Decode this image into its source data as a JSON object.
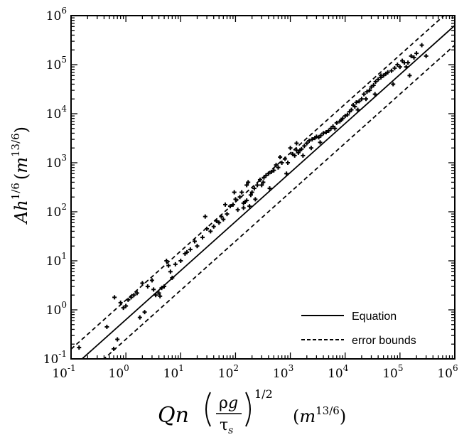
{
  "chart_data": {
    "type": "scatter",
    "scale": "log-log",
    "xlim": [
      0.1,
      1000000
    ],
    "ylim": [
      0.1,
      1000000
    ],
    "ticks": [
      {
        "value": 0.1,
        "base": "10",
        "exp": "-1"
      },
      {
        "value": 1,
        "base": "10",
        "exp": "0"
      },
      {
        "value": 10,
        "base": "10",
        "exp": "1"
      },
      {
        "value": 100,
        "base": "10",
        "exp": "2"
      },
      {
        "value": 1000,
        "base": "10",
        "exp": "3"
      },
      {
        "value": 10000,
        "base": "10",
        "exp": "4"
      },
      {
        "value": 100000,
        "base": "10",
        "exp": "5"
      },
      {
        "value": 1000000,
        "base": "10",
        "exp": "6"
      }
    ],
    "xlabel": {
      "q": "Q",
      "n": "n",
      "rho": "ρ",
      "g": "g",
      "tau": "τ",
      "tau_sub": "s",
      "power": "1/2",
      "unit_open": "(",
      "unit_m": "m",
      "unit_exp": "13/6",
      "unit_close": ")"
    },
    "ylabel": {
      "main": "Ah",
      "power": "1/6",
      "unit_open": "(",
      "unit_m": "m",
      "unit_exp": "13/6",
      "unit_close": ")"
    },
    "legend": {
      "position": "bottom-right",
      "entries": [
        {
          "label": "Equation",
          "style": "solid"
        },
        {
          "label": "error bounds",
          "style": "dashed"
        }
      ]
    },
    "lines": {
      "equation": {
        "x": [
          0.1,
          1000000
        ],
        "y": [
          0.0631,
          631000
        ]
      },
      "upper_bound": {
        "x": [
          0.1,
          1000000
        ],
        "y": [
          0.158,
          1580000
        ]
      },
      "lower_bound": {
        "x": [
          0.1,
          1000000
        ],
        "y": [
          0.0251,
          251000
        ]
      }
    },
    "points": {
      "x": [
        0.14,
        0.45,
        0.6,
        0.62,
        0.8,
        1.0,
        1.1,
        1.25,
        1.4,
        1.6,
        2.0,
        2.5,
        3.0,
        3.5,
        3.2,
        4.0,
        4.5,
        5.0,
        5.5,
        4.2,
        6.5,
        8.0,
        10,
        13,
        15,
        20,
        25,
        30,
        35,
        40,
        45,
        50,
        55,
        60,
        70,
        80,
        90,
        100,
        110,
        120,
        130,
        140,
        150,
        160,
        170,
        180,
        200,
        220,
        250,
        280,
        300,
        330,
        360,
        400,
        450,
        500,
        550,
        600,
        700,
        800,
        900,
        1000,
        1100,
        1200,
        1300,
        1400,
        1500,
        1600,
        1800,
        2000,
        2200,
        2500,
        2800,
        3000,
        3300,
        3600,
        4000,
        4500,
        5000,
        5500,
        6000,
        7000,
        8000,
        9000,
        10000,
        11000,
        12000,
        13000,
        14000,
        15000,
        16000,
        18000,
        20000,
        22000,
        25000,
        28000,
        30000,
        33000,
        36000,
        40000,
        45000,
        50000,
        55000,
        60000,
        70000,
        80000,
        90000,
        100000,
        110000,
        120000,
        140000,
        160000,
        180000,
        200000,
        250000,
        300000,
        1.8,
        2.2,
        0.7,
        0.9,
        6.0,
        7.0,
        12,
        18,
        28,
        65,
        95,
        140,
        160,
        190,
        230,
        320,
        420,
        650,
        850,
        1300,
        1700,
        2400,
        3500,
        6500,
        8500,
        17000,
        24000,
        35000,
        45000,
        75000,
        130000,
        150000
      ],
      "y": [
        0.17,
        0.45,
        0.16,
        1.8,
        1.4,
        1.2,
        1.6,
        1.8,
        2.0,
        2.2,
        3.5,
        3.0,
        4.0,
        2.0,
        2.6,
        2.2,
        2.8,
        3.0,
        10,
        1.9,
        6.0,
        8.5,
        10,
        15,
        17,
        20,
        30,
        45,
        40,
        50,
        65,
        60,
        80,
        70,
        90,
        130,
        140,
        180,
        110,
        200,
        250,
        150,
        160,
        170,
        400,
        130,
        250,
        300,
        350,
        450,
        350,
        500,
        550,
        600,
        650,
        700,
        900,
        800,
        1000,
        1200,
        1000,
        2000,
        1500,
        1400,
        1800,
        1600,
        1800,
        1900,
        2200,
        2500,
        2800,
        3000,
        3200,
        3400,
        3300,
        3600,
        4000,
        4200,
        4500,
        5000,
        5500,
        6500,
        7000,
        8000,
        9000,
        9500,
        11000,
        12000,
        15000,
        14000,
        17000,
        18000,
        20000,
        25000,
        28000,
        30000,
        35000,
        38000,
        45000,
        50000,
        55000,
        60000,
        65000,
        70000,
        75000,
        85000,
        100000,
        90000,
        120000,
        110000,
        110000,
        150000,
        140000,
        170000,
        250000,
        150000,
        0.7,
        0.9,
        0.25,
        1.1,
        8.0,
        4.5,
        14,
        25,
        80,
        140,
        250,
        120,
        350,
        220,
        180,
        400,
        300,
        1300,
        600,
        2500,
        1400,
        2000,
        2600,
        5000,
        7500,
        12000,
        20000,
        25000,
        60000,
        40000,
        90000,
        60000
      ]
    }
  }
}
